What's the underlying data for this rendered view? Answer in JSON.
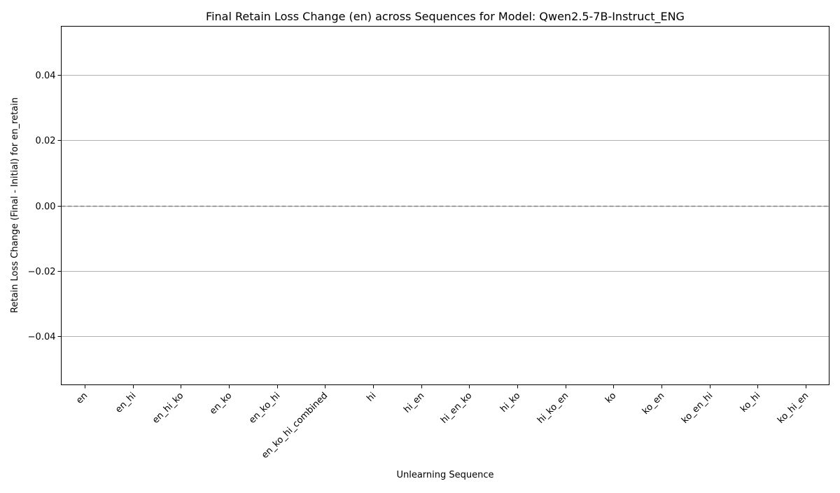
{
  "chart_data": {
    "type": "bar",
    "title": "Final Retain Loss Change (en) across Sequences for Model: Qwen2.5-7B-Instruct_ENG",
    "xlabel": "Unlearning Sequence",
    "ylabel": "Retain Loss Change (Final - Initial) for en_retain",
    "categories": [
      "en",
      "en_hi",
      "en_hi_ko",
      "en_ko",
      "en_ko_hi",
      "en_ko_hi_combined",
      "hi",
      "hi_en",
      "hi_en_ko",
      "hi_ko",
      "hi_ko_en",
      "ko",
      "ko_en",
      "ko_en_hi",
      "ko_hi",
      "ko_hi_en"
    ],
    "values": [
      0,
      0,
      0,
      0,
      0,
      0,
      0,
      0,
      0,
      0,
      0,
      0,
      0,
      0,
      0,
      0
    ],
    "ylim": [
      -0.055,
      0.055
    ],
    "yticks": [
      -0.04,
      -0.02,
      0.0,
      0.02,
      0.04
    ],
    "ytick_labels": [
      "−0.04",
      "−0.02",
      "0.00",
      "0.02",
      "0.04"
    ],
    "grid": "y",
    "reference_line": 0,
    "colors": {
      "grid": "#b0b0b0",
      "reference_line": "#808080",
      "axis": "#000000",
      "bar": "#4c72b0"
    }
  }
}
